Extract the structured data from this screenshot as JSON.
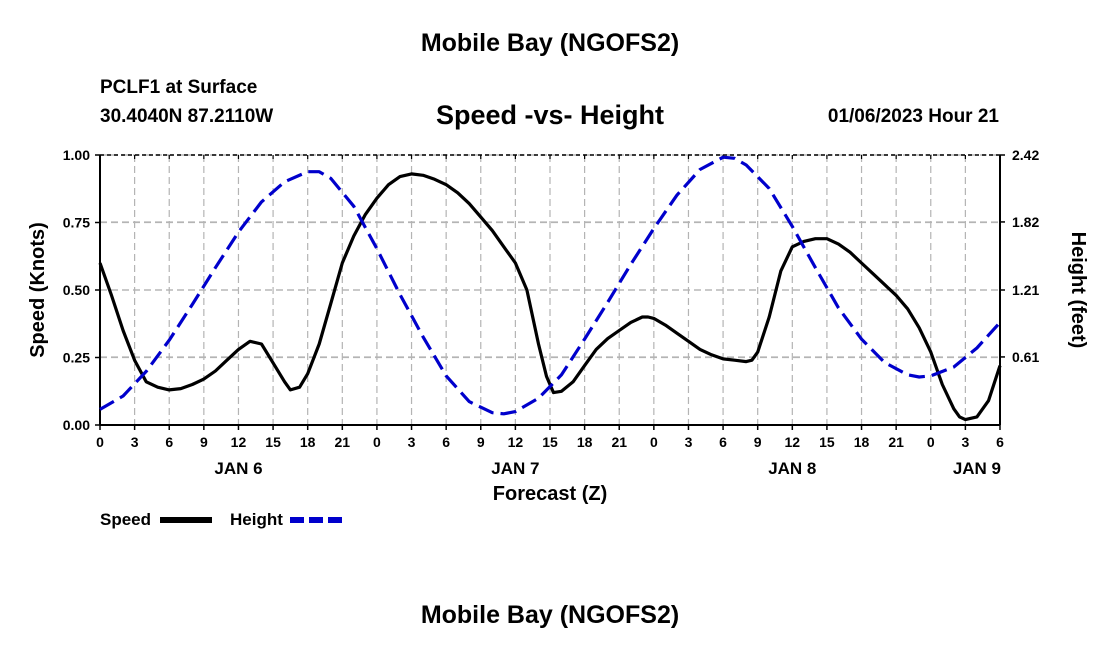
{
  "header": {
    "title": "Mobile Bay (NGOFS2)",
    "station": "PCLF1 at Surface",
    "coords": "30.4040N  87.2110W",
    "subtitle": "Speed -vs- Height",
    "timestamp": "01/06/2023 Hour 21"
  },
  "footer": {
    "title": "Mobile Bay (NGOFS2)"
  },
  "chart_data": {
    "type": "line",
    "title": "Speed -vs- Height",
    "xlabel": "Forecast (Z)",
    "ylabel": "Speed (Knots)",
    "y2label": "Height (feet)",
    "xlim": [
      0,
      78
    ],
    "ylim": [
      0,
      1
    ],
    "y2lim": [
      0,
      2.42
    ],
    "x_ticks": [
      {
        "h": 0,
        "label": "0"
      },
      {
        "h": 3,
        "label": "3"
      },
      {
        "h": 6,
        "label": "6"
      },
      {
        "h": 9,
        "label": "9"
      },
      {
        "h": 12,
        "label": "12"
      },
      {
        "h": 15,
        "label": "15"
      },
      {
        "h": 18,
        "label": "18"
      },
      {
        "h": 21,
        "label": "21"
      },
      {
        "h": 24,
        "label": "0"
      },
      {
        "h": 27,
        "label": "3"
      },
      {
        "h": 30,
        "label": "6"
      },
      {
        "h": 33,
        "label": "9"
      },
      {
        "h": 36,
        "label": "12"
      },
      {
        "h": 39,
        "label": "15"
      },
      {
        "h": 42,
        "label": "18"
      },
      {
        "h": 45,
        "label": "21"
      },
      {
        "h": 48,
        "label": "0"
      },
      {
        "h": 51,
        "label": "3"
      },
      {
        "h": 54,
        "label": "6"
      },
      {
        "h": 57,
        "label": "9"
      },
      {
        "h": 60,
        "label": "12"
      },
      {
        "h": 63,
        "label": "15"
      },
      {
        "h": 66,
        "label": "18"
      },
      {
        "h": 69,
        "label": "21"
      },
      {
        "h": 72,
        "label": "0"
      },
      {
        "h": 75,
        "label": "3"
      },
      {
        "h": 78,
        "label": "6"
      }
    ],
    "date_labels": [
      {
        "h": 12,
        "label": "JAN 6"
      },
      {
        "h": 36,
        "label": "JAN 7"
      },
      {
        "h": 60,
        "label": "JAN 8"
      },
      {
        "h": 76,
        "label": "JAN 9"
      }
    ],
    "y_ticks": [
      {
        "v": 0,
        "label": "0.00"
      },
      {
        "v": 0.25,
        "label": "0.25"
      },
      {
        "v": 0.5,
        "label": "0.50"
      },
      {
        "v": 0.75,
        "label": "0.75"
      },
      {
        "v": 1.0,
        "label": "1.00"
      }
    ],
    "y2_ticks": [
      {
        "v": 0.61,
        "label": "0.61"
      },
      {
        "v": 1.21,
        "label": "1.21"
      },
      {
        "v": 1.82,
        "label": "1.82"
      },
      {
        "v": 2.42,
        "label": "2.42"
      }
    ],
    "grid": true,
    "series": [
      {
        "name": "Speed",
        "axis": "left",
        "color": "#000000",
        "style": "solid",
        "points": [
          [
            0,
            0.6
          ],
          [
            1,
            0.48
          ],
          [
            2,
            0.35
          ],
          [
            3,
            0.24
          ],
          [
            4,
            0.16
          ],
          [
            5,
            0.14
          ],
          [
            6,
            0.13
          ],
          [
            7,
            0.135
          ],
          [
            8,
            0.15
          ],
          [
            9,
            0.17
          ],
          [
            10,
            0.2
          ],
          [
            11,
            0.24
          ],
          [
            12,
            0.28
          ],
          [
            13,
            0.31
          ],
          [
            14,
            0.3
          ],
          [
            15,
            0.23
          ],
          [
            16,
            0.16
          ],
          [
            16.5,
            0.13
          ],
          [
            17.3,
            0.14
          ],
          [
            18,
            0.19
          ],
          [
            19,
            0.3
          ],
          [
            20,
            0.45
          ],
          [
            21,
            0.6
          ],
          [
            22,
            0.7
          ],
          [
            23,
            0.78
          ],
          [
            24,
            0.84
          ],
          [
            25,
            0.89
          ],
          [
            26,
            0.92
          ],
          [
            27,
            0.93
          ],
          [
            28,
            0.925
          ],
          [
            29,
            0.91
          ],
          [
            30,
            0.89
          ],
          [
            31,
            0.86
          ],
          [
            32,
            0.82
          ],
          [
            33,
            0.77
          ],
          [
            34,
            0.72
          ],
          [
            35,
            0.66
          ],
          [
            36,
            0.6
          ],
          [
            37,
            0.5
          ],
          [
            38,
            0.3
          ],
          [
            38.7,
            0.18
          ],
          [
            39.3,
            0.12
          ],
          [
            40,
            0.125
          ],
          [
            41,
            0.16
          ],
          [
            42,
            0.22
          ],
          [
            43,
            0.28
          ],
          [
            44,
            0.32
          ],
          [
            45,
            0.35
          ],
          [
            46,
            0.38
          ],
          [
            47,
            0.4
          ],
          [
            47.5,
            0.4
          ],
          [
            48,
            0.395
          ],
          [
            49,
            0.37
          ],
          [
            50,
            0.34
          ],
          [
            51,
            0.31
          ],
          [
            52,
            0.28
          ],
          [
            53,
            0.26
          ],
          [
            54,
            0.245
          ],
          [
            55,
            0.24
          ],
          [
            56,
            0.235
          ],
          [
            56.5,
            0.24
          ],
          [
            57,
            0.27
          ],
          [
            58,
            0.4
          ],
          [
            59,
            0.57
          ],
          [
            60,
            0.66
          ],
          [
            61,
            0.68
          ],
          [
            62,
            0.69
          ],
          [
            63,
            0.69
          ],
          [
            64,
            0.67
          ],
          [
            65,
            0.64
          ],
          [
            66,
            0.6
          ],
          [
            67,
            0.56
          ],
          [
            68,
            0.52
          ],
          [
            69,
            0.48
          ],
          [
            70,
            0.43
          ],
          [
            71,
            0.36
          ],
          [
            72,
            0.27
          ],
          [
            73,
            0.15
          ],
          [
            74,
            0.06
          ],
          [
            74.5,
            0.03
          ],
          [
            75,
            0.02
          ],
          [
            76,
            0.03
          ],
          [
            77,
            0.09
          ],
          [
            78,
            0.22
          ]
        ]
      },
      {
        "name": "Height",
        "axis": "right",
        "color": "#0000cc",
        "style": "dashed",
        "points": [
          [
            0,
            0.14
          ],
          [
            2,
            0.26
          ],
          [
            4,
            0.48
          ],
          [
            6,
            0.76
          ],
          [
            8,
            1.08
          ],
          [
            10,
            1.41
          ],
          [
            12,
            1.73
          ],
          [
            14,
            2.0
          ],
          [
            16,
            2.18
          ],
          [
            18,
            2.27
          ],
          [
            19,
            2.27
          ],
          [
            20,
            2.21
          ],
          [
            22,
            1.96
          ],
          [
            24,
            1.58
          ],
          [
            26,
            1.17
          ],
          [
            28,
            0.79
          ],
          [
            30,
            0.44
          ],
          [
            32,
            0.21
          ],
          [
            34,
            0.11
          ],
          [
            35,
            0.1
          ],
          [
            36,
            0.12
          ],
          [
            38,
            0.24
          ],
          [
            40,
            0.45
          ],
          [
            42,
            0.77
          ],
          [
            44,
            1.1
          ],
          [
            46,
            1.44
          ],
          [
            48,
            1.76
          ],
          [
            50,
            2.06
          ],
          [
            52,
            2.29
          ],
          [
            54,
            2.4
          ],
          [
            55,
            2.39
          ],
          [
            56,
            2.33
          ],
          [
            58,
            2.12
          ],
          [
            60,
            1.78
          ],
          [
            62,
            1.41
          ],
          [
            64,
            1.05
          ],
          [
            66,
            0.77
          ],
          [
            68,
            0.56
          ],
          [
            70,
            0.45
          ],
          [
            71,
            0.43
          ],
          [
            72,
            0.44
          ],
          [
            74,
            0.52
          ],
          [
            76,
            0.69
          ],
          [
            78,
            0.92
          ]
        ]
      }
    ],
    "legend": [
      {
        "label": "Speed",
        "color": "#000000",
        "style": "solid"
      },
      {
        "label": "Height",
        "color": "#0000cc",
        "style": "dashed"
      }
    ]
  }
}
